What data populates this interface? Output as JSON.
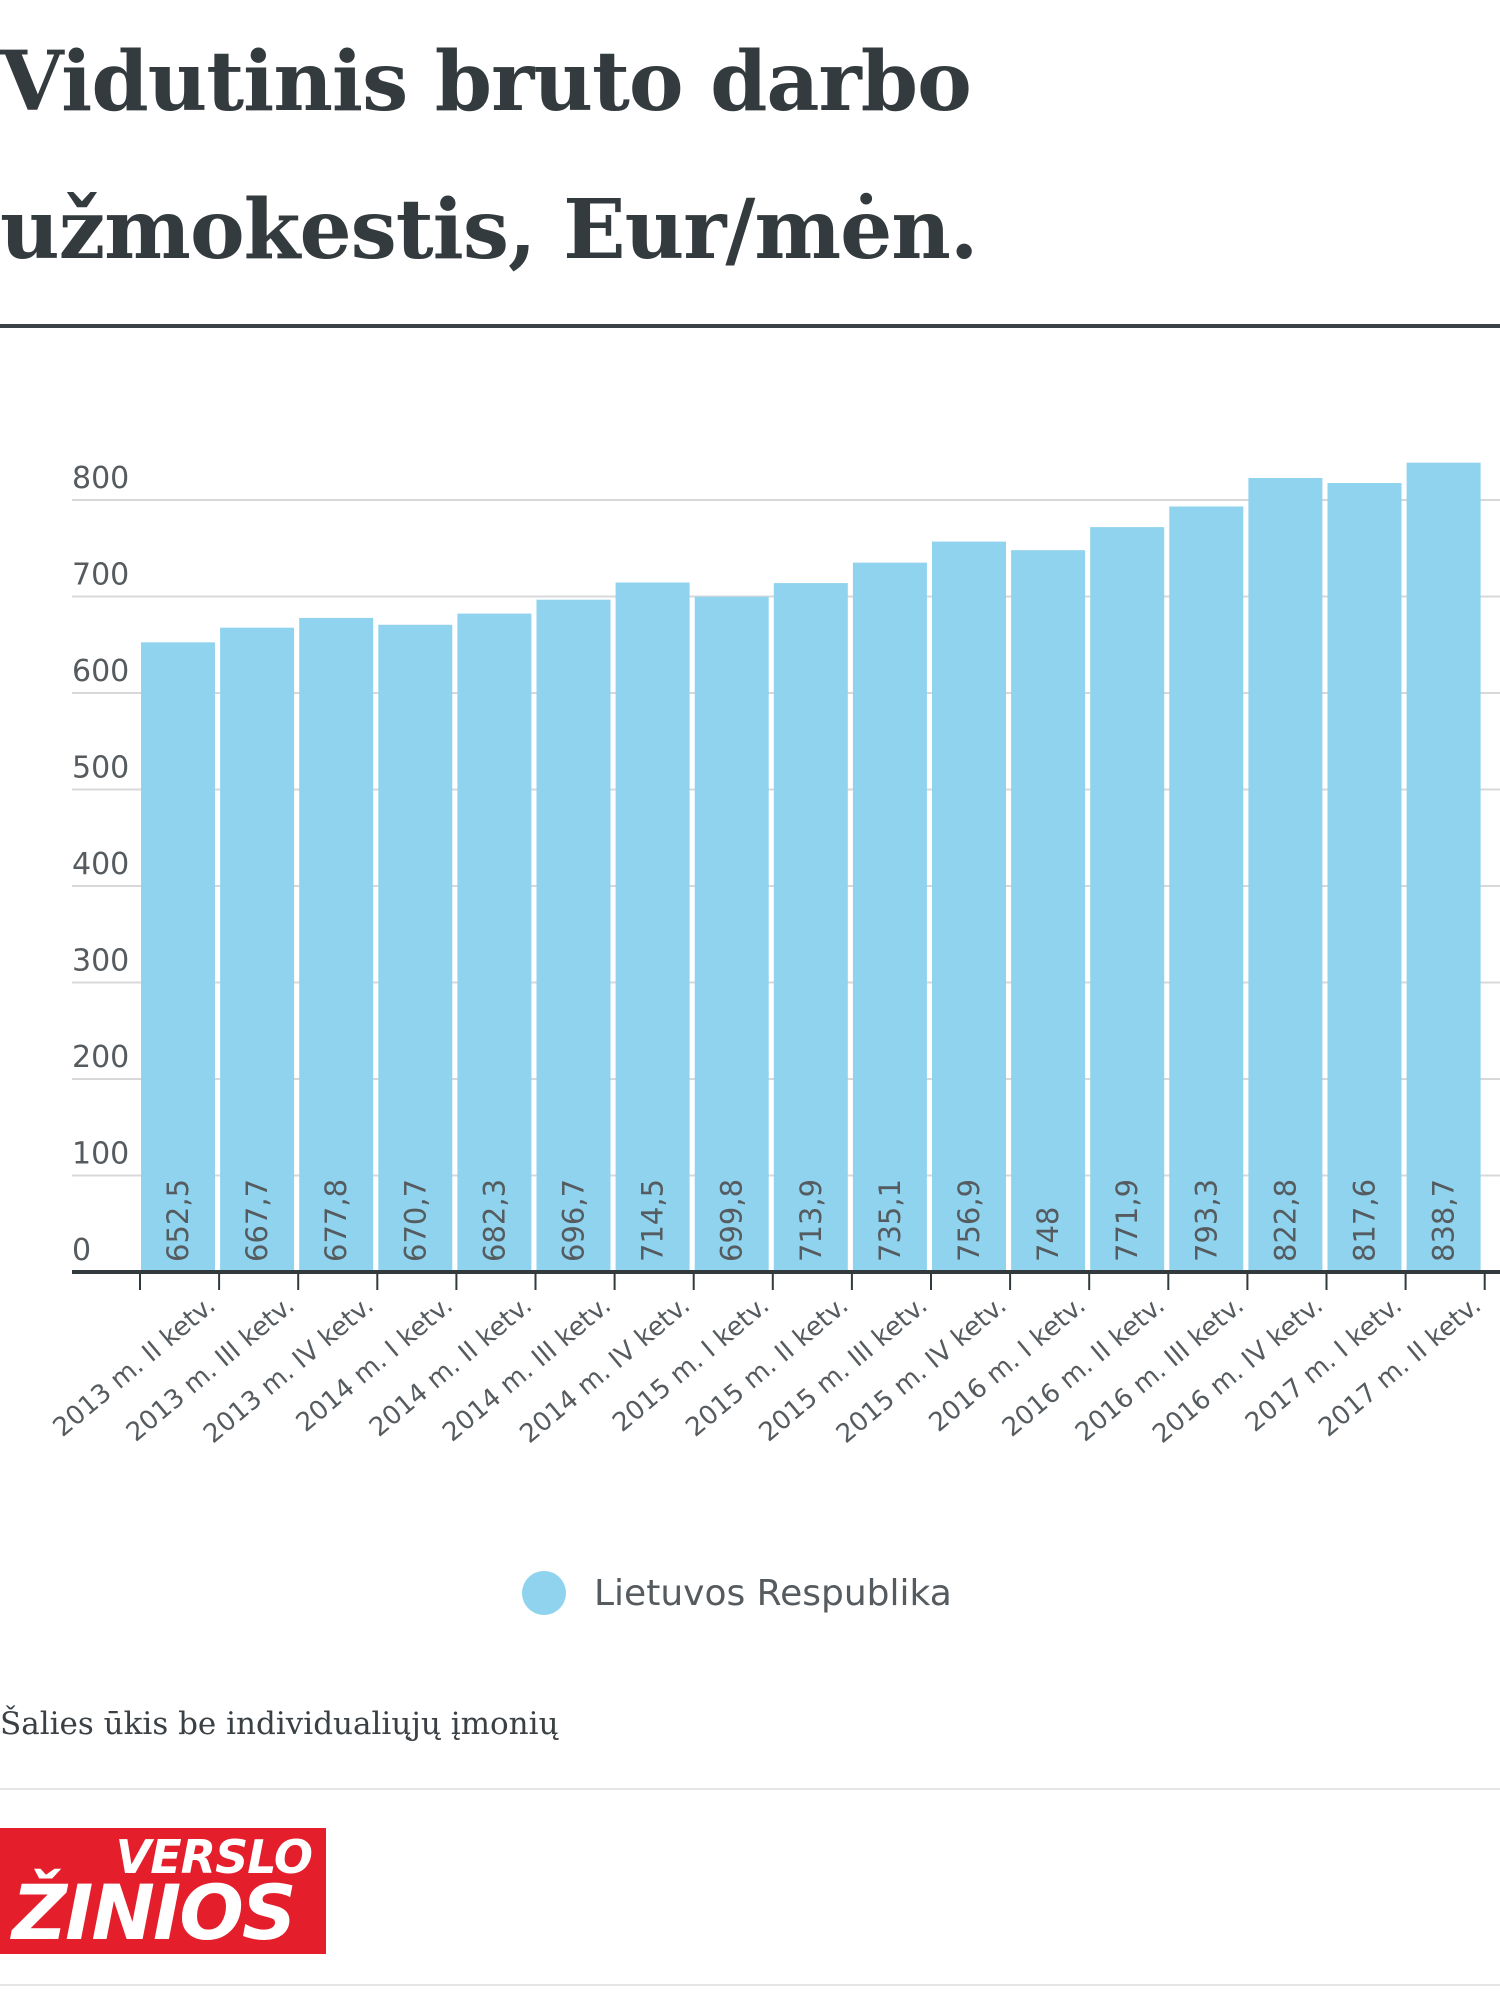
{
  "title": "Vidutinis bruto darbo užmokestis, Eur/mėn.",
  "source_note": "Šalies ūkis be individualiųjų įmonių",
  "logo": {
    "top": "VERSLO",
    "bottom": "ŽINIOS"
  },
  "colors": {
    "bar": "#8fd3ee",
    "axis": "#333a3e",
    "grid": "#d8d8d8",
    "label": "#555b5f",
    "logo": "#e41e2b"
  },
  "chart_data": {
    "type": "bar",
    "title": "Vidutinis bruto darbo užmokestis, Eur/mėn.",
    "xlabel": "",
    "ylabel": "",
    "ylim": [
      0,
      850
    ],
    "yticks": [
      0,
      100,
      200,
      300,
      400,
      500,
      600,
      700,
      800
    ],
    "grid": true,
    "legend": "bottom-center",
    "categories": [
      "2013 m. II ketv.",
      "2013 m. III ketv.",
      "2013 m. IV ketv.",
      "2014 m. I ketv.",
      "2014 m. II ketv.",
      "2014 m. III ketv.",
      "2014 m. IV ketv.",
      "2015 m. I ketv.",
      "2015 m. II ketv.",
      "2015 m. III ketv.",
      "2015 m. IV ketv.",
      "2016 m. I ketv.",
      "2016 m. II ketv.",
      "2016 m. III ketv.",
      "2016 m. IV ketv.",
      "2017 m. I ketv.",
      "2017 m. II ketv."
    ],
    "series": [
      {
        "name": "Lietuvos Respublika",
        "values": [
          652.5,
          667.7,
          677.8,
          670.7,
          682.3,
          696.7,
          714.5,
          699.8,
          713.9,
          735.1,
          756.9,
          748,
          771.9,
          793.3,
          822.8,
          817.6,
          838.7
        ],
        "value_labels": [
          "652,5",
          "667,7",
          "677,8",
          "670,7",
          "682,3",
          "696,7",
          "714,5",
          "699,8",
          "713,9",
          "735,1",
          "756,9",
          "748",
          "771,9",
          "793,3",
          "822,8",
          "817,6",
          "838,7"
        ]
      }
    ]
  }
}
